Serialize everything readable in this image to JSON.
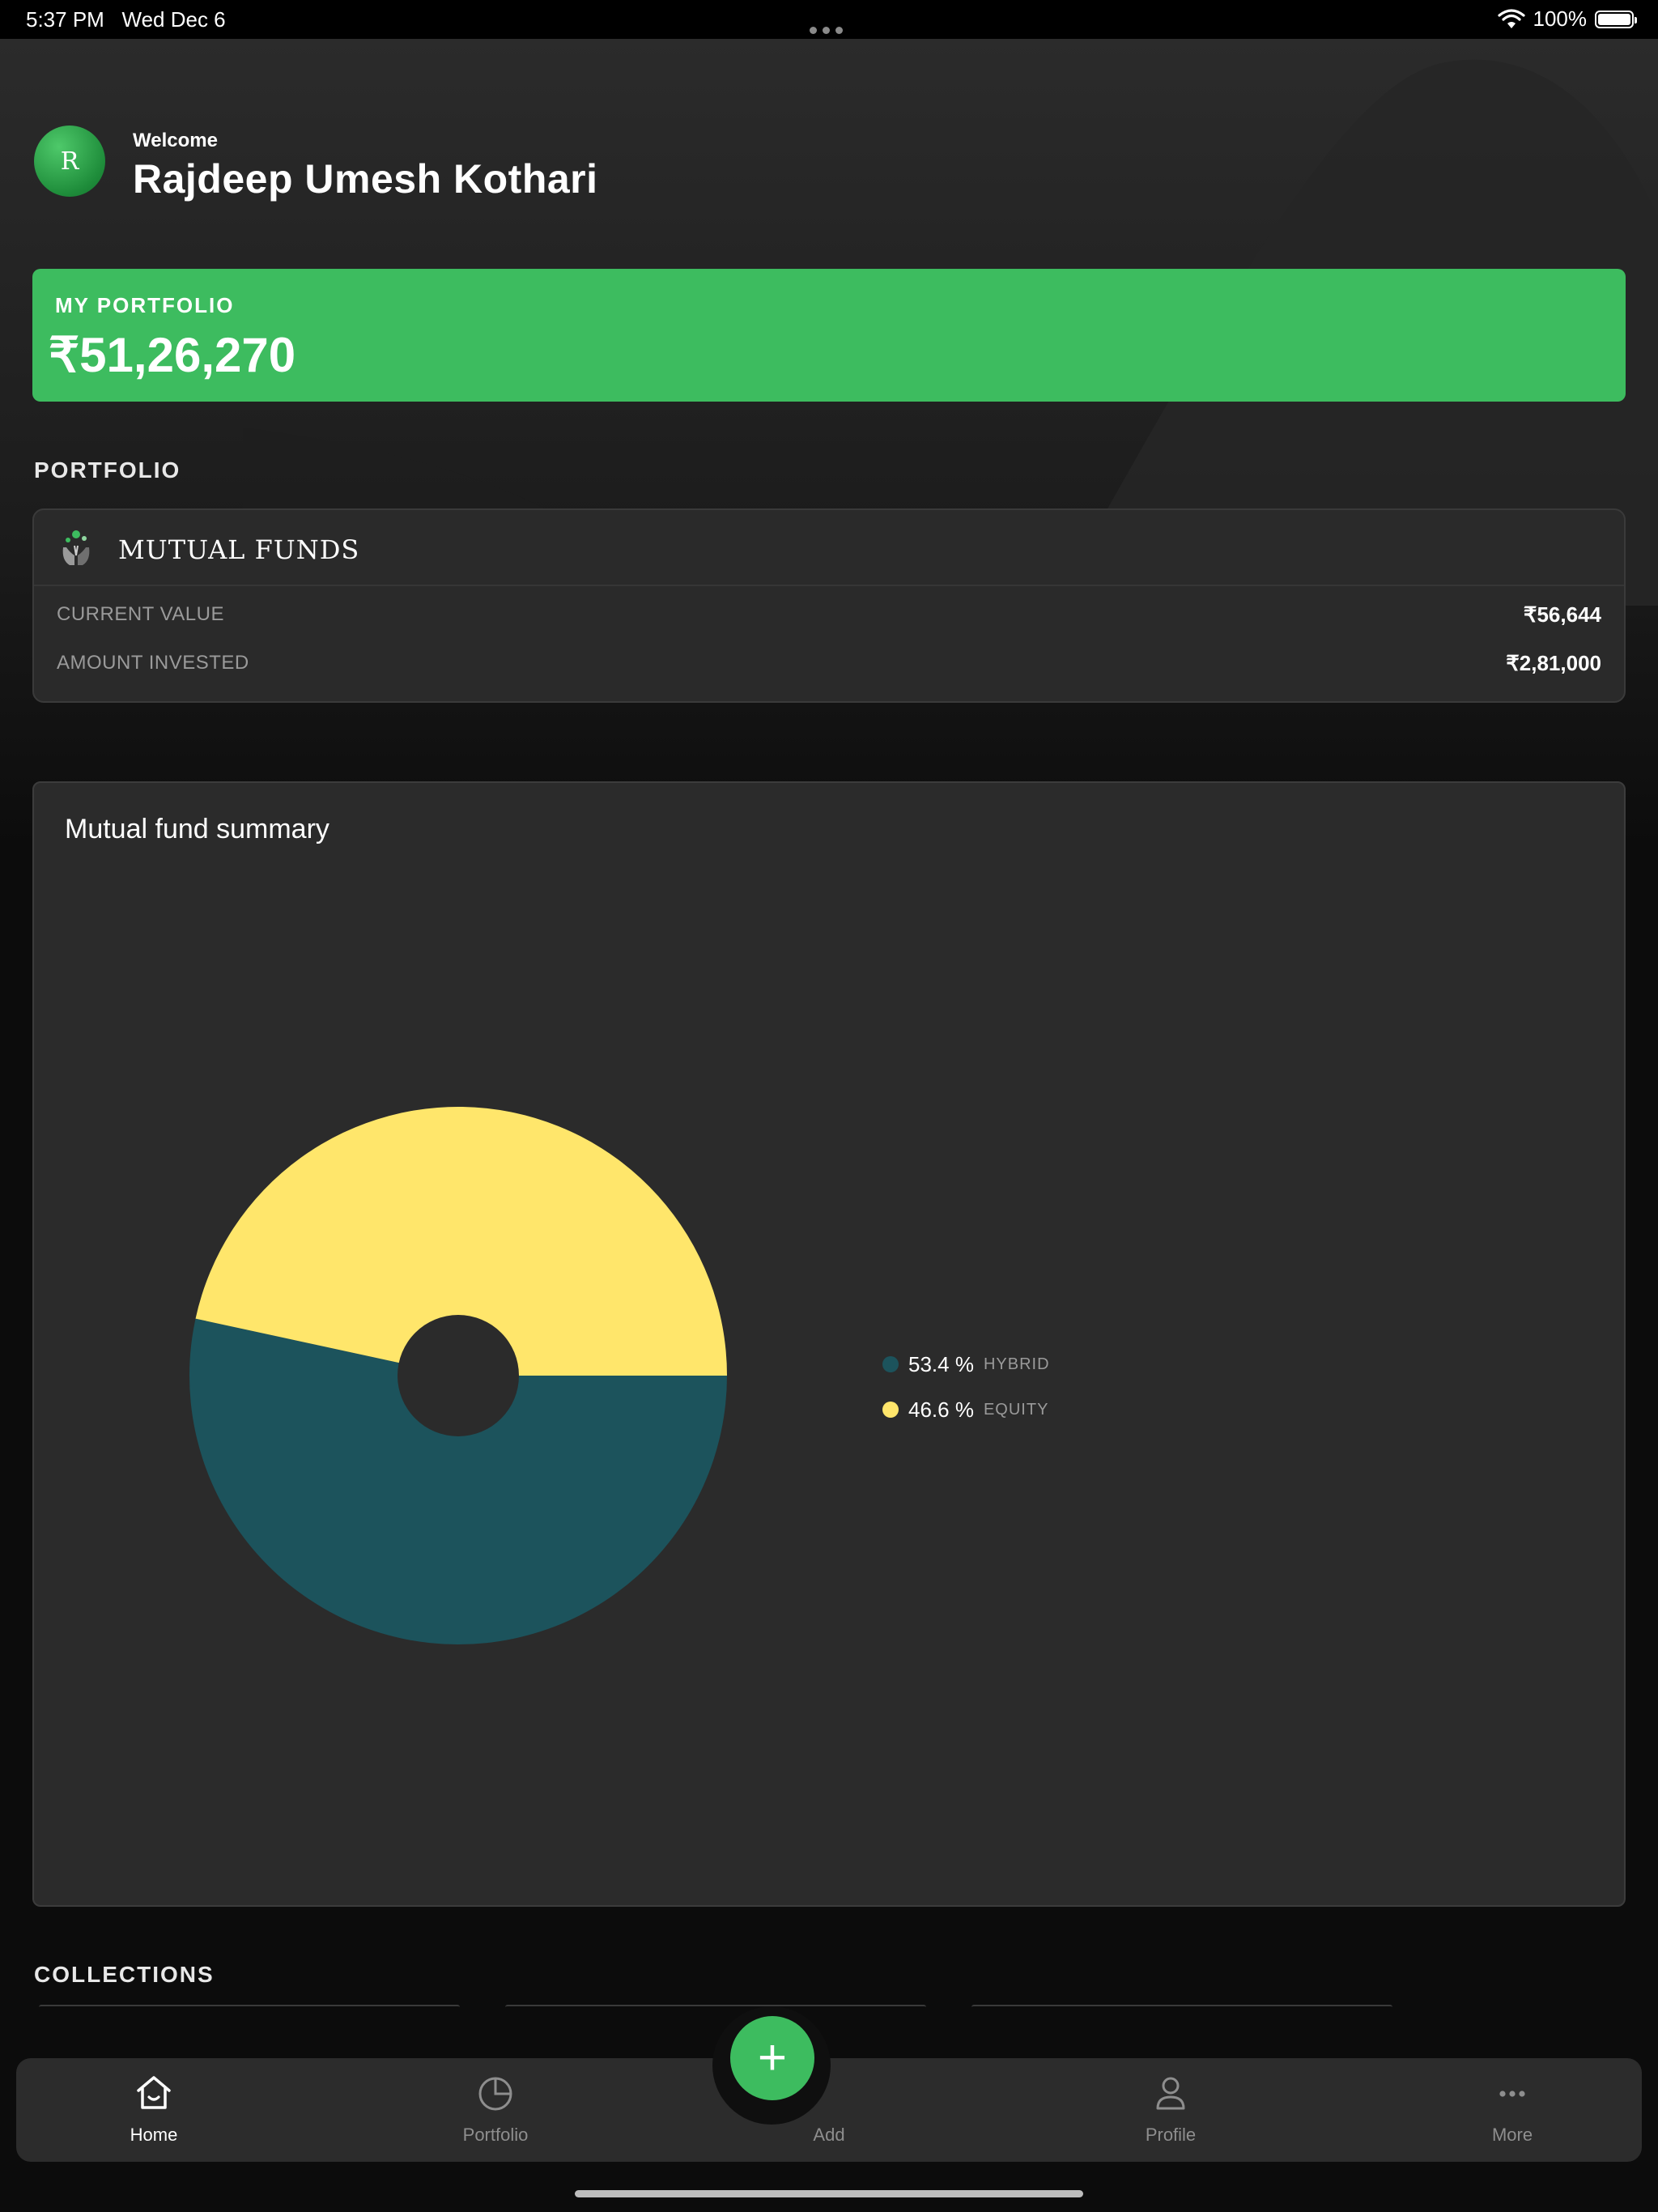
{
  "status_bar": {
    "time": "5:37 PM",
    "date": "Wed Dec 6",
    "battery": "100%"
  },
  "header": {
    "avatar_initial": "R",
    "welcome": "Welcome",
    "user_name": "Rajdeep Umesh Kothari"
  },
  "my_portfolio": {
    "label": "MY PORTFOLIO",
    "value": "₹51,26,270"
  },
  "portfolio_section": {
    "title": "PORTFOLIO",
    "mutual_funds": {
      "title": "MUTUAL FUNDS",
      "current_value_label": "CURRENT VALUE",
      "current_value": "₹56,644",
      "amount_invested_label": "AMOUNT INVESTED",
      "amount_invested": "₹2,81,000"
    }
  },
  "chart_data": {
    "type": "pie",
    "title": "Mutual fund summary",
    "series": [
      {
        "name": "HYBRID",
        "value": 53.4,
        "display": "53.4 %",
        "color": "#1c535c"
      },
      {
        "name": "EQUITY",
        "value": 46.6,
        "display": "46.6 %",
        "color": "#ffe66b"
      }
    ],
    "legend_position": "right"
  },
  "collections": {
    "title": "COLLECTIONS"
  },
  "tab_bar": {
    "items": [
      {
        "label": "Home",
        "icon": "home-icon",
        "active": true
      },
      {
        "label": "Portfolio",
        "icon": "pie-chart-icon",
        "active": false
      },
      {
        "label": "Add",
        "icon": "plus-icon",
        "active": false
      },
      {
        "label": "Profile",
        "icon": "person-icon",
        "active": false
      },
      {
        "label": "More",
        "icon": "ellipsis-icon",
        "active": false
      }
    ],
    "fab_symbol": "+"
  },
  "colors": {
    "accent": "#3dbc5f",
    "hybrid": "#1c535c",
    "equity": "#ffe66b",
    "card": "#2b2b2b"
  }
}
